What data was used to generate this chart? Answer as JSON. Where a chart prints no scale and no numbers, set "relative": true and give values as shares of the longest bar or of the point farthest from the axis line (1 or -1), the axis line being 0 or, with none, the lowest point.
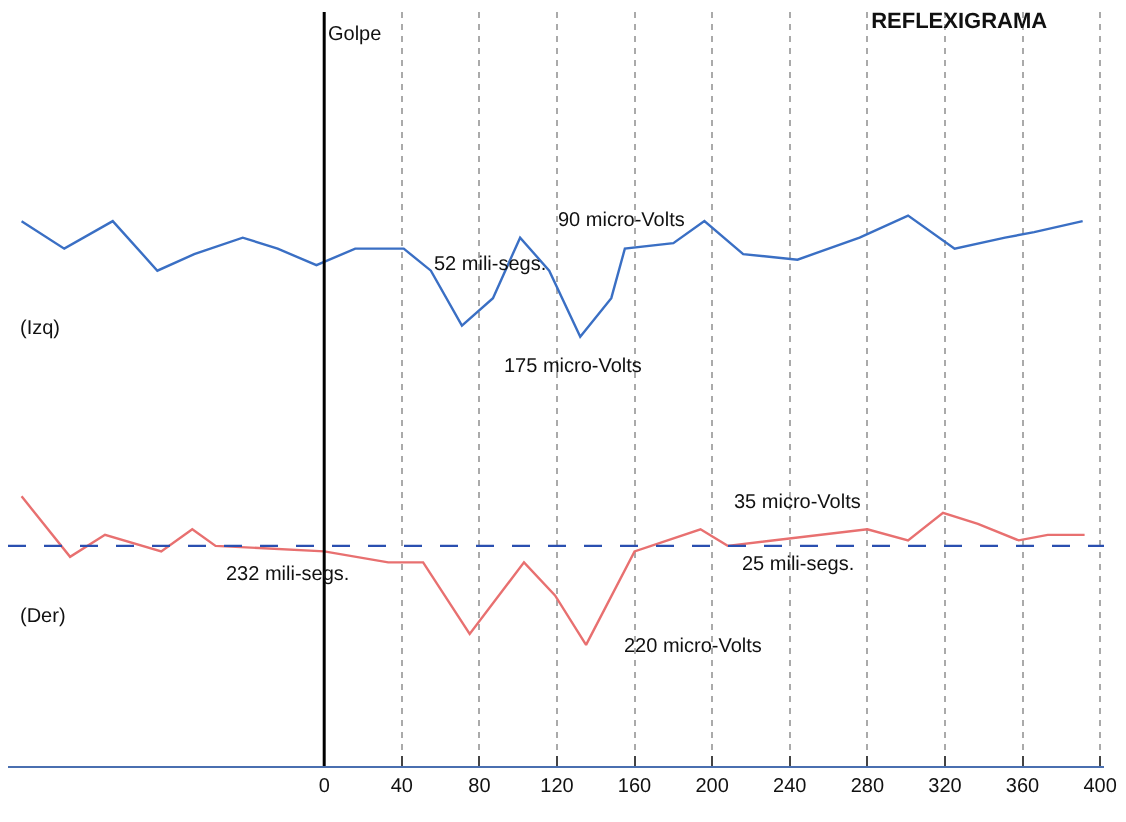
{
  "chart_data": {
    "type": "line",
    "title": "REFLEXIGRAMA",
    "relative": true,
    "xlim": [
      -163,
      402
    ],
    "xticks": [
      0,
      40,
      80,
      120,
      160,
      200,
      240,
      280,
      320,
      360,
      400
    ],
    "grid": "x",
    "marker": "none",
    "line_style": "solid",
    "series": [
      {
        "color": "#3a6fc4",
        "x": [
          -156,
          -134,
          -109,
          -86,
          -67,
          -42,
          -24,
          -4,
          16,
          41,
          55,
          71,
          87,
          101,
          116,
          132,
          148,
          155,
          180,
          196,
          216,
          244,
          276,
          301,
          325,
          351,
          366,
          391
        ],
        "values": [
          0.99,
          0.94,
          0.99,
          0.9,
          0.93,
          0.96,
          0.94,
          0.91,
          0.94,
          0.94,
          0.9,
          0.8,
          0.85,
          0.96,
          0.9,
          0.78,
          0.85,
          0.94,
          0.95,
          0.99,
          0.93,
          0.92,
          0.96,
          1.0,
          0.94,
          0.96,
          0.97,
          0.99
        ]
      },
      {
        "color": "#e87070",
        "x": [
          -156,
          -131,
          -113,
          -84,
          -68,
          -56,
          0,
          33,
          51,
          75,
          103,
          119,
          135,
          160,
          194,
          208,
          280,
          301,
          319,
          337,
          358,
          373,
          392
        ],
        "values": [
          0.49,
          0.38,
          0.42,
          0.39,
          0.43,
          0.4,
          0.39,
          0.37,
          0.37,
          0.24,
          0.37,
          0.31,
          0.22,
          0.39,
          0.43,
          0.4,
          0.43,
          0.41,
          0.46,
          0.44,
          0.41,
          0.42,
          0.42
        ]
      }
    ],
    "ref_lines": [
      {
        "axis": "x",
        "value": 0,
        "color": "#000000",
        "line_style": "solid"
      },
      {
        "axis": "y",
        "value": 0.4,
        "color": "#2a4fb0",
        "line_style": "dashed"
      }
    ],
    "annotations": [
      {
        "text": "Golpe",
        "x": 0,
        "y": 1.33
      },
      "(Izq)",
      "(Der)",
      "52 mili-segs.",
      "90 micro-Volts",
      "175 micro-Volts",
      "232 mili-segs.",
      "35 micro-Volts",
      "25 mili-segs.",
      "220 micro-Volts"
    ]
  }
}
